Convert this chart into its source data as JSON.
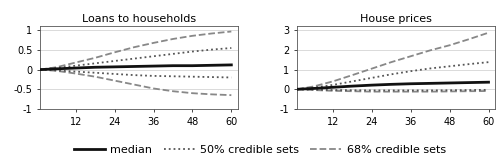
{
  "x": [
    1,
    6,
    12,
    18,
    24,
    30,
    36,
    42,
    48,
    54,
    60
  ],
  "panel1": {
    "title": "Loans to households",
    "median": [
      0.0,
      0.02,
      0.04,
      0.06,
      0.07,
      0.08,
      0.09,
      0.1,
      0.1,
      0.11,
      0.12
    ],
    "p50_upper": [
      0.0,
      0.04,
      0.1,
      0.16,
      0.22,
      0.28,
      0.34,
      0.4,
      0.46,
      0.51,
      0.55
    ],
    "p50_lower": [
      0.0,
      -0.02,
      -0.05,
      -0.08,
      -0.11,
      -0.14,
      -0.16,
      -0.17,
      -0.18,
      -0.19,
      -0.2
    ],
    "p68_upper": [
      0.0,
      0.06,
      0.18,
      0.3,
      0.44,
      0.57,
      0.68,
      0.78,
      0.86,
      0.92,
      0.97
    ],
    "p68_lower": [
      0.0,
      -0.03,
      -0.1,
      -0.18,
      -0.28,
      -0.38,
      -0.48,
      -0.55,
      -0.6,
      -0.63,
      -0.65
    ],
    "ylim": [
      -1.0,
      1.1
    ],
    "yticks": [
      -1,
      -0.5,
      0,
      0.5,
      1
    ]
  },
  "panel2": {
    "title": "House prices",
    "median": [
      0.0,
      0.04,
      0.1,
      0.16,
      0.21,
      0.25,
      0.28,
      0.3,
      0.32,
      0.34,
      0.36
    ],
    "p50_upper": [
      0.0,
      0.08,
      0.22,
      0.4,
      0.58,
      0.76,
      0.92,
      1.06,
      1.17,
      1.28,
      1.38
    ],
    "p50_lower": [
      0.0,
      -0.02,
      -0.04,
      -0.05,
      -0.06,
      -0.06,
      -0.06,
      -0.06,
      -0.05,
      -0.04,
      -0.03
    ],
    "p68_upper": [
      0.0,
      0.14,
      0.4,
      0.72,
      1.05,
      1.38,
      1.68,
      1.98,
      2.24,
      2.55,
      2.88
    ],
    "p68_lower": [
      0.0,
      -0.04,
      -0.08,
      -0.1,
      -0.12,
      -0.12,
      -0.12,
      -0.12,
      -0.11,
      -0.1,
      -0.09
    ],
    "ylim": [
      -1.0,
      3.2
    ],
    "yticks": [
      -1,
      0,
      1,
      2,
      3
    ]
  },
  "xticks": [
    12,
    24,
    36,
    48,
    60
  ],
  "xlim": [
    1,
    62
  ],
  "median_color": "#111111",
  "p50_color": "#555555",
  "p68_color": "#888888",
  "median_lw": 2.0,
  "p50_lw": 1.3,
  "p68_lw": 1.3,
  "median_ls": "-",
  "p50_ls": ":",
  "p68_ls": "--",
  "legend_labels": [
    "median",
    "50% credible sets",
    "68% credible sets"
  ],
  "tick_fontsize": 7,
  "title_fontsize": 8,
  "grid_color": "#cccccc",
  "grid_lw": 0.5
}
